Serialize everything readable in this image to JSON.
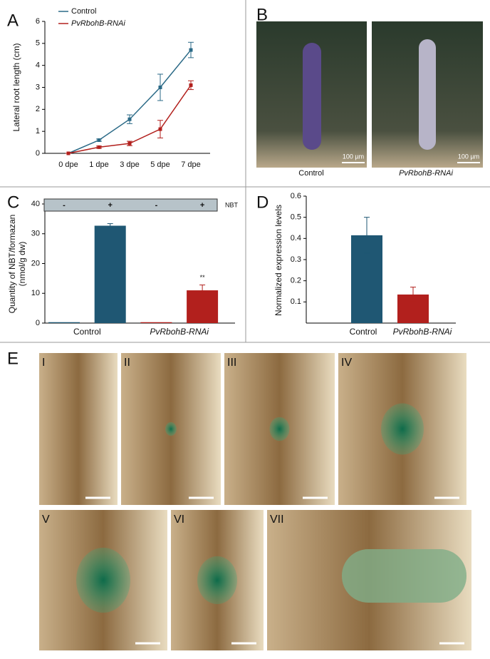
{
  "chart_data": [
    {
      "type": "line",
      "panel": "A",
      "ylabel": "Lateral root length (cm)",
      "categories": [
        "0 dpe",
        "1 dpe",
        "3 dpe",
        "5 dpe",
        "7 dpe"
      ],
      "series": [
        {
          "name": "Control",
          "color": "#2b6a87",
          "values": [
            0,
            0.6,
            1.55,
            3.0,
            4.7
          ],
          "errors": [
            0,
            0.05,
            0.2,
            0.6,
            0.35
          ]
        },
        {
          "name": "PvRbohB-RNAi",
          "color": "#b2201d",
          "values": [
            0,
            0.28,
            0.45,
            1.1,
            3.1
          ],
          "errors": [
            0,
            0.05,
            0.1,
            0.4,
            0.2
          ]
        }
      ],
      "ylim": [
        0,
        6
      ],
      "yticks": [
        0,
        1,
        2,
        3,
        4,
        5,
        6
      ]
    },
    {
      "type": "bar",
      "panel": "C",
      "ylabel": [
        "Quantity of NBT/formazan",
        "(nmol/g dw)"
      ],
      "categories": [
        "Control",
        "PvRbohB-RNAi"
      ],
      "colors": [
        "#1f5773",
        "#b2201d"
      ],
      "legend_title": "NBT",
      "series": [
        {
          "name": "-",
          "values": [
            0.3,
            0.3
          ],
          "errors": [
            0,
            0
          ]
        },
        {
          "name": "+",
          "values": [
            32.7,
            11
          ],
          "errors": [
            0.7,
            1.8
          ]
        }
      ],
      "annotation": "**",
      "ylim": [
        0,
        40
      ],
      "yticks": [
        0,
        10,
        20,
        30,
        40
      ]
    },
    {
      "type": "bar",
      "panel": "D",
      "ylabel": "Normalized expression levels",
      "categories": [
        "Control",
        "PvRbohB-RNAi"
      ],
      "colors": [
        "#1f5773",
        "#b2201d"
      ],
      "series": [
        {
          "values": [
            0.415,
            0.135
          ],
          "errors": [
            0.085,
            0.035
          ]
        }
      ],
      "ylim": [
        0,
        0.6
      ],
      "yticks": [
        0.1,
        0.2,
        0.3,
        0.4,
        0.5,
        0.6
      ]
    }
  ],
  "panels": {
    "B": {
      "label": "B",
      "captions": [
        "Control",
        "PvRbohB-RNAi"
      ],
      "scale": "100 µm"
    },
    "E": {
      "label": "E",
      "images": [
        "I",
        "II",
        "III",
        "IV",
        "V",
        "VI",
        "VII"
      ]
    }
  }
}
